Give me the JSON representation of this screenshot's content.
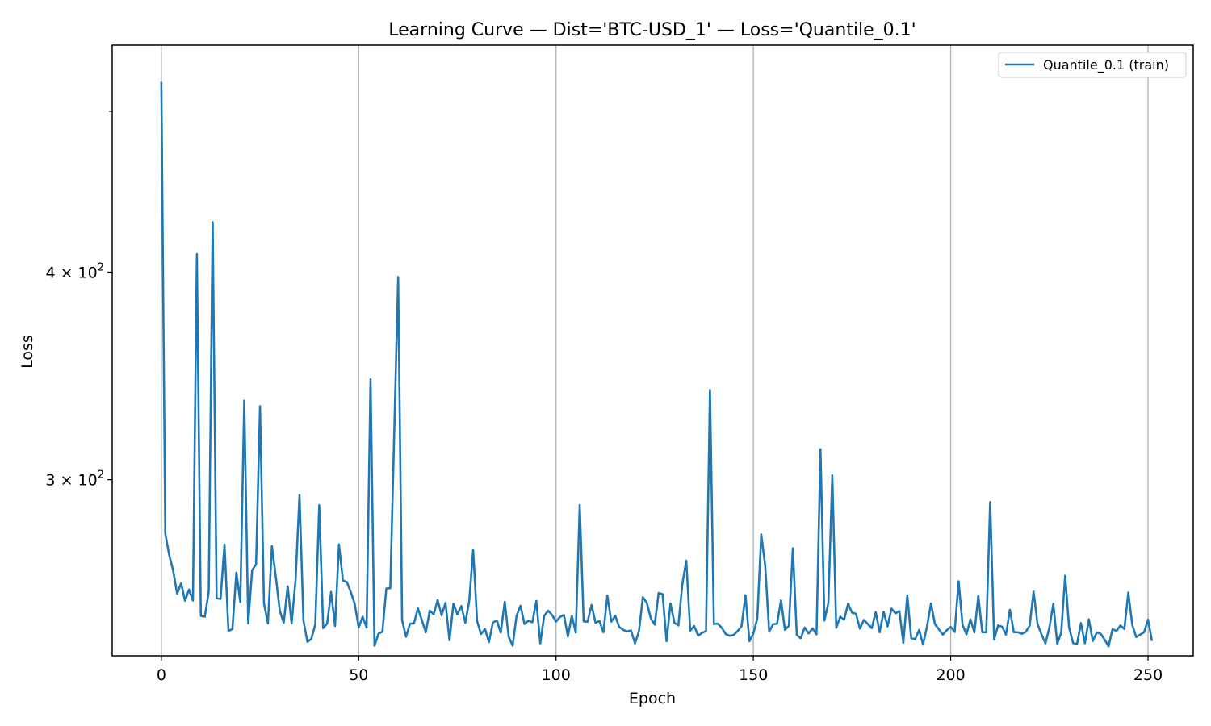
{
  "chart_data": {
    "type": "line",
    "title": "Learning Curve — Dist='BTC-USD_1' — Loss='Quantile_0.1'",
    "xlabel": "Epoch",
    "ylabel": "Loss",
    "xlim": [
      -12.45,
      261.45
    ],
    "ylim": [
      235,
      548
    ],
    "yscale": "log",
    "x_ticks": [
      0,
      50,
      100,
      150,
      200,
      250
    ],
    "x_tick_labels": [
      "0",
      "50",
      "100",
      "150",
      "200",
      "250"
    ],
    "y_ticks": [
      300,
      400
    ],
    "y_tick_labels": [
      {
        "base": "3 × 10",
        "exp": "2"
      },
      {
        "base": "4 × 10",
        "exp": "2"
      }
    ],
    "grid": {
      "x": true,
      "y": false
    },
    "legend_position": "top-right",
    "series": [
      {
        "name": "Quantile_0.1 (train)",
        "color": "#1f77b4",
        "start_epoch": 0,
        "values": [
          520.8,
          278.4,
          270.2,
          264.4,
          256.1,
          259.9,
          253.6,
          257.6,
          253.7,
          410.1,
          248.4,
          248.1,
          256.8,
          428.7,
          254.5,
          254.3,
          274.2,
          243.2,
          243.9,
          263.7,
          253.2,
          334.8,
          245.8,
          264.6,
          266.8,
          332.2,
          252.7,
          245.8,
          273.6,
          262.2,
          250.2,
          246.0,
          258.8,
          245.8,
          261.0,
          293.7,
          246.8,
          239.6,
          240.6,
          245.4,
          289.6,
          244.2,
          245.7,
          256.8,
          244.9,
          274.3,
          260.9,
          260.3,
          256.7,
          252.5,
          244.4,
          248.1,
          244.4,
          344.8,
          238.3,
          242.3,
          243.0,
          258.0,
          258.1,
          320.1,
          397.3,
          246.8,
          241.3,
          245.7,
          245.8,
          251.0,
          246.9,
          242.8,
          250.2,
          248.9,
          253.9,
          248.6,
          252.9,
          240.1,
          252.6,
          248.9,
          251.8,
          246.0,
          253.5,
          272.2,
          246.5,
          242.2,
          243.9,
          239.5,
          246.1,
          246.8,
          242.7,
          253.3,
          241.3,
          238.3,
          248.4,
          251.9,
          245.6,
          246.7,
          246.2,
          253.6,
          239.1,
          248.4,
          250.2,
          248.7,
          246.4,
          248.0,
          248.7,
          241.4,
          248.4,
          242.7,
          289.7,
          246.5,
          246.4,
          252.2,
          246.0,
          246.6,
          242.8,
          255.5,
          246.4,
          248.4,
          244.6,
          243.6,
          243.1,
          243.4,
          239.1,
          243.1,
          254.9,
          252.9,
          247.6,
          245.4,
          256.4,
          256.0,
          239.8,
          252.7,
          246.0,
          245.1,
          259.6,
          268.1,
          243.3,
          244.9,
          241.7,
          242.6,
          243.2,
          339.8,
          245.6,
          245.7,
          244.3,
          242.2,
          241.6,
          241.9,
          243.2,
          244.8,
          255.6,
          239.8,
          242.4,
          247.5,
          278.1,
          266.2,
          243.0,
          245.5,
          245.7,
          253.8,
          243.6,
          245.0,
          272.8,
          241.9,
          240.8,
          244.4,
          242.4,
          244.1,
          242.1,
          313.0,
          246.8,
          252.9,
          301.8,
          244.3,
          248.1,
          247.1,
          252.6,
          249.5,
          249.1,
          244.0,
          247.0,
          245.6,
          244.2,
          249.7,
          242.8,
          249.8,
          244.8,
          250.9,
          249.3,
          250.0,
          239.3,
          255.5,
          240.8,
          240.5,
          243.6,
          238.7,
          244.8,
          252.7,
          245.6,
          243.8,
          242.0,
          243.5,
          244.6,
          242.9,
          260.6,
          245.3,
          242.1,
          247.2,
          242.8,
          255.3,
          242.8,
          242.8,
          290.9,
          240.4,
          245.1,
          244.7,
          242.0,
          250.5,
          242.8,
          242.8,
          242.3,
          242.9,
          245.0,
          256.9,
          245.6,
          242.1,
          239.1,
          244.4,
          252.6,
          238.9,
          242.7,
          262.6,
          244.4,
          239.2,
          238.8,
          245.9,
          239.1,
          247.2,
          239.9,
          242.7,
          242.3,
          240.3,
          238.1,
          243.9,
          243.2,
          245.1,
          243.9,
          256.6,
          245.3,
          241.2,
          242.0,
          242.8,
          247.1,
          239.9
        ]
      }
    ]
  }
}
